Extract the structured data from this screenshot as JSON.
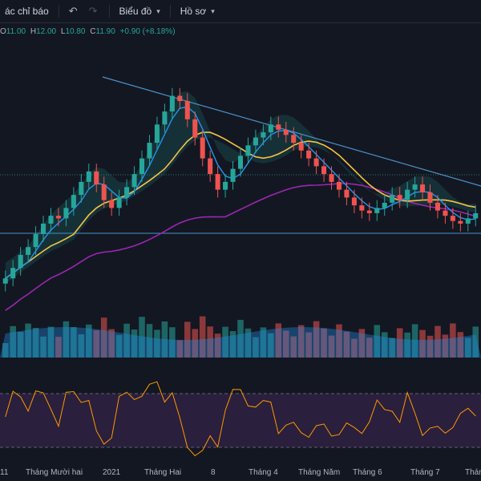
{
  "toolbar": {
    "indicators_label": "ác chỉ báo",
    "undo_icon": "undo-icon",
    "redo_icon": "redo-icon",
    "chart_menu_label": "Biểu đồ",
    "profile_menu_label": "Hồ sơ",
    "chart_icon": "chart-icon",
    "profile_icon": "layout-icon"
  },
  "ohlc": {
    "open_key": "O",
    "open_val": "11.00",
    "high_key": "H",
    "high_val": "12.00",
    "low_key": "L",
    "low_val": "10.80",
    "close_key": "C",
    "close_val": "11.90",
    "change": "+0.90 (+8.18%)"
  },
  "colors": {
    "up": "#26a69a",
    "down": "#ef5350",
    "ma_fast": "#2196f3",
    "ma_mid": "#f5c542",
    "ma_slow": "#9c27b0",
    "trendline": "#4a90c8",
    "rsi": "#ff9800",
    "rsi_band": "#2a1f3d"
  },
  "time_axis": [
    "11",
    "Tháng Mười hai",
    "2021",
    "Tháng Hai",
    "8",
    "Tháng 4",
    "Tháng Năm",
    "Tháng 6",
    "Tháng 7",
    "Tháng"
  ],
  "chart_data": {
    "type": "candlestick",
    "title": "",
    "series": [
      {
        "values": [
          7.2,
          7.6,
          8.1,
          8.4,
          8.9,
          9.3,
          9.6,
          9.5,
          9.9,
          10.4,
          10.9,
          11.3,
          10.8,
          10.2,
          9.9,
          10.3,
          10.7,
          11.2,
          11.8,
          12.4,
          13.1,
          13.6,
          14.2,
          14.0,
          13.3,
          12.6,
          11.8,
          11.2,
          10.6,
          10.9,
          11.4,
          11.9,
          12.3,
          12.6,
          12.8,
          13.1,
          12.9,
          12.7,
          12.4,
          12.1,
          11.8,
          11.5,
          11.2,
          10.9,
          10.6,
          10.3,
          10.0,
          9.8,
          9.7,
          9.9,
          10.1,
          10.4,
          10.2,
          10.6,
          10.8,
          10.5,
          10.1,
          9.8,
          9.6,
          9.4,
          9.3,
          9.5,
          9.7
        ]
      }
    ]
  }
}
